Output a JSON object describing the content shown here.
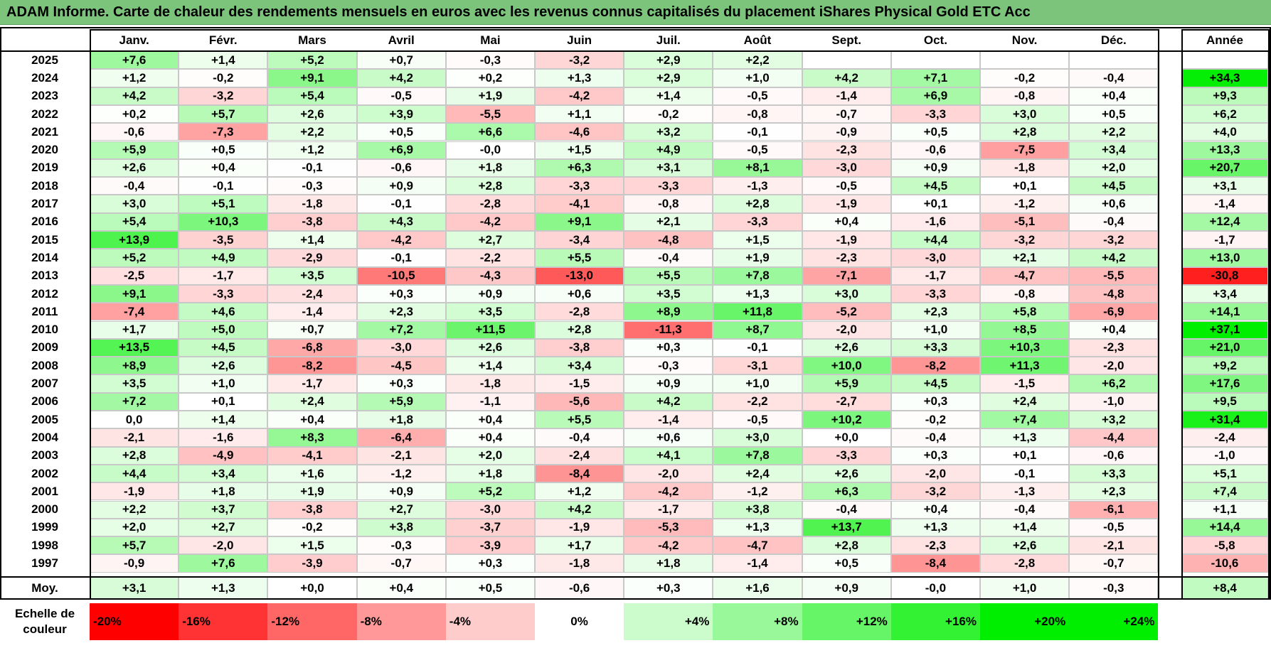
{
  "title": "ADAM Informe. Carte de chaleur des rendements mensuels en euros avec les revenus connus capitalisés du placement iShares Physical Gold ETC Acc",
  "chart_data": {
    "type": "heatmap",
    "months": [
      "Janv.",
      "Févr.",
      "Mars",
      "Avril",
      "Mai",
      "Juin",
      "Juil.",
      "Août",
      "Sept.",
      "Oct.",
      "Nov.",
      "Déc."
    ],
    "year_header": "Année",
    "rows": [
      {
        "year": "2025",
        "m": [
          "+7,6",
          "+1,4",
          "+5,2",
          "+0,7",
          "-0,3",
          "-3,2",
          "+2,9",
          "+2,2",
          "",
          "",
          "",
          ""
        ],
        "y": ""
      },
      {
        "year": "2024",
        "m": [
          "+1,2",
          "-0,2",
          "+9,1",
          "+4,2",
          "+0,2",
          "+1,3",
          "+2,9",
          "+1,0",
          "+4,2",
          "+7,1",
          "-0,2",
          "-0,4"
        ],
        "y": "+34,3"
      },
      {
        "year": "2023",
        "m": [
          "+4,2",
          "-3,2",
          "+5,4",
          "-0,5",
          "+1,9",
          "-4,2",
          "+1,4",
          "-0,5",
          "-1,4",
          "+6,9",
          "-0,8",
          "+0,4"
        ],
        "y": "+9,3"
      },
      {
        "year": "2022",
        "m": [
          "+0,2",
          "+5,7",
          "+2,6",
          "+3,9",
          "-5,5",
          "+1,1",
          "-0,2",
          "-0,8",
          "-0,7",
          "-3,3",
          "+3,0",
          "+0,5"
        ],
        "y": "+6,2"
      },
      {
        "year": "2021",
        "m": [
          "-0,6",
          "-7,3",
          "+2,2",
          "+0,5",
          "+6,6",
          "-4,6",
          "+3,2",
          "-0,1",
          "-0,9",
          "+0,5",
          "+2,8",
          "+2,2"
        ],
        "y": "+4,0"
      },
      {
        "year": "2020",
        "m": [
          "+5,9",
          "+0,5",
          "+1,2",
          "+6,9",
          "-0,0",
          "+1,5",
          "+4,9",
          "-0,5",
          "-2,3",
          "-0,6",
          "-7,5",
          "+3,4"
        ],
        "y": "+13,3"
      },
      {
        "year": "2019",
        "m": [
          "+2,6",
          "+0,4",
          "-0,1",
          "-0,6",
          "+1,8",
          "+6,3",
          "+3,1",
          "+8,1",
          "-3,0",
          "+0,9",
          "-1,8",
          "+2,0"
        ],
        "y": "+20,7"
      },
      {
        "year": "2018",
        "m": [
          "-0,4",
          "-0,1",
          "-0,3",
          "+0,9",
          "+2,8",
          "-3,3",
          "-3,3",
          "-1,3",
          "-0,5",
          "+4,5",
          "+0,1",
          "+4,5"
        ],
        "y": "+3,1"
      },
      {
        "year": "2017",
        "m": [
          "+3,0",
          "+5,1",
          "-1,8",
          "-0,1",
          "-2,8",
          "-4,1",
          "-0,8",
          "+2,8",
          "-1,9",
          "+0,1",
          "-1,2",
          "+0,6"
        ],
        "y": "-1,4"
      },
      {
        "year": "2016",
        "m": [
          "+5,4",
          "+10,3",
          "-3,8",
          "+4,3",
          "-4,2",
          "+9,1",
          "+2,1",
          "-3,3",
          "+0,4",
          "-1,6",
          "-5,1",
          "-0,4"
        ],
        "y": "+12,4"
      },
      {
        "year": "2015",
        "m": [
          "+13,9",
          "-3,5",
          "+1,4",
          "-4,2",
          "+2,7",
          "-3,4",
          "-4,8",
          "+1,5",
          "-1,9",
          "+4,4",
          "-3,2",
          "-3,2"
        ],
        "y": "-1,7"
      },
      {
        "year": "2014",
        "m": [
          "+5,2",
          "+4,9",
          "-2,9",
          "-0,1",
          "-2,2",
          "+5,5",
          "-0,4",
          "+1,9",
          "-2,3",
          "-3,0",
          "+2,1",
          "+4,2"
        ],
        "y": "+13,0"
      },
      {
        "year": "2013",
        "m": [
          "-2,5",
          "-1,7",
          "+3,5",
          "-10,5",
          "-4,3",
          "-13,0",
          "+5,5",
          "+7,8",
          "-7,1",
          "-1,7",
          "-4,7",
          "-5,5"
        ],
        "y": "-30,8"
      },
      {
        "year": "2012",
        "m": [
          "+9,1",
          "-3,3",
          "-2,4",
          "+0,3",
          "+0,9",
          "+0,6",
          "+3,5",
          "+1,3",
          "+3,0",
          "-3,3",
          "-0,8",
          "-4,8"
        ],
        "y": "+3,4"
      },
      {
        "year": "2011",
        "m": [
          "-7,4",
          "+4,6",
          "-1,4",
          "+2,3",
          "+3,5",
          "-2,8",
          "+8,9",
          "+11,8",
          "-5,2",
          "+2,3",
          "+5,8",
          "-6,9"
        ],
        "y": "+14,1"
      },
      {
        "year": "2010",
        "m": [
          "+1,7",
          "+5,0",
          "+0,7",
          "+7,2",
          "+11,5",
          "+2,8",
          "-11,3",
          "+8,7",
          "-2,0",
          "+1,0",
          "+8,5",
          "+0,4"
        ],
        "y": "+37,1"
      },
      {
        "year": "2009",
        "m": [
          "+13,5",
          "+4,5",
          "-6,8",
          "-3,0",
          "+2,6",
          "-3,8",
          "+0,3",
          "-0,1",
          "+2,6",
          "+3,3",
          "+10,3",
          "-2,3"
        ],
        "y": "+21,0"
      },
      {
        "year": "2008",
        "m": [
          "+8,9",
          "+2,6",
          "-8,2",
          "-4,5",
          "+1,4",
          "+3,4",
          "-0,3",
          "-3,1",
          "+10,0",
          "-8,2",
          "+11,3",
          "-2,0"
        ],
        "y": "+9,2"
      },
      {
        "year": "2007",
        "m": [
          "+3,5",
          "+1,0",
          "-1,7",
          "+0,3",
          "-1,8",
          "-1,5",
          "+0,9",
          "+1,0",
          "+5,9",
          "+4,5",
          "-1,5",
          "+6,2"
        ],
        "y": "+17,6"
      },
      {
        "year": "2006",
        "m": [
          "+7,2",
          "+0,1",
          "+2,4",
          "+5,9",
          "-1,1",
          "-5,6",
          "+4,2",
          "-2,2",
          "-2,7",
          "+0,3",
          "+2,4",
          "-1,0"
        ],
        "y": "+9,5"
      },
      {
        "year": "2005",
        "m": [
          "0,0",
          "+1,4",
          "+0,4",
          "+1,8",
          "+0,4",
          "+5,5",
          "-1,4",
          "-0,5",
          "+10,2",
          "-0,2",
          "+7,4",
          "+3,2"
        ],
        "y": "+31,4"
      },
      {
        "year": "2004",
        "m": [
          "-2,1",
          "-1,6",
          "+8,3",
          "-6,4",
          "+0,4",
          "-0,4",
          "+0,6",
          "+3,0",
          "+0,0",
          "-0,4",
          "+1,3",
          "-4,4"
        ],
        "y": "-2,4"
      },
      {
        "year": "2003",
        "m": [
          "+2,8",
          "-4,9",
          "-4,1",
          "-2,1",
          "+2,0",
          "-2,4",
          "+4,1",
          "+7,8",
          "-3,3",
          "+0,3",
          "+0,1",
          "-0,6"
        ],
        "y": "-1,0"
      },
      {
        "year": "2002",
        "m": [
          "+4,4",
          "+3,4",
          "+1,6",
          "-1,2",
          "+1,8",
          "-8,4",
          "-2,0",
          "+2,4",
          "+2,6",
          "-2,0",
          "-0,1",
          "+3,3"
        ],
        "y": "+5,1"
      },
      {
        "year": "2001",
        "m": [
          "-1,9",
          "+1,8",
          "+1,9",
          "+0,9",
          "+5,2",
          "+1,2",
          "-4,2",
          "-1,2",
          "+6,3",
          "-3,2",
          "-1,3",
          "+2,3"
        ],
        "y": "+7,4"
      },
      {
        "year": "2000",
        "m": [
          "+2,2",
          "+3,7",
          "-3,8",
          "+2,7",
          "-3,0",
          "+4,2",
          "-1,7",
          "+3,8",
          "-0,4",
          "+0,4",
          "-0,4",
          "-6,1"
        ],
        "y": "+1,1"
      },
      {
        "year": "1999",
        "m": [
          "+2,0",
          "+2,7",
          "-0,2",
          "+3,8",
          "-3,7",
          "-1,9",
          "-5,3",
          "+1,3",
          "+13,7",
          "+1,3",
          "+1,4",
          "-0,5"
        ],
        "y": "+14,4"
      },
      {
        "year": "1998",
        "m": [
          "+5,7",
          "-2,0",
          "+1,5",
          "-0,3",
          "-3,9",
          "+1,7",
          "-4,2",
          "-4,7",
          "+2,8",
          "-2,3",
          "+2,6",
          "-2,1"
        ],
        "y": "-5,8"
      },
      {
        "year": "1997",
        "m": [
          "-0,9",
          "+7,6",
          "-3,9",
          "-0,7",
          "+0,3",
          "-1,8",
          "+1,8",
          "-1,4",
          "+0,5",
          "-8,4",
          "-2,8",
          "-0,7"
        ],
        "y": "-10,6"
      }
    ],
    "average": {
      "label": "Moy.",
      "m": [
        "+3,1",
        "+1,3",
        "+0,0",
        "+0,4",
        "+0,5",
        "-0,6",
        "+0,3",
        "+1,6",
        "+0,9",
        "-0,0",
        "+1,0",
        "-0,3"
      ],
      "y": "+8,4"
    },
    "legend": {
      "label_line1": "Echelle de",
      "label_line2": "couleur",
      "ticks": [
        "-20%",
        "-16%",
        "-12%",
        "-8%",
        "-4%",
        "0%",
        "+4%",
        "+8%",
        "+12%",
        "+16%",
        "+20%",
        "+24%"
      ],
      "values": [
        -20,
        -16,
        -12,
        -8,
        -4,
        0,
        4,
        8,
        12,
        16,
        20,
        24
      ]
    },
    "colors": {
      "negative_max": "#ff0000",
      "positive_max": "#00ee00",
      "neutral": "#ffffff"
    }
  }
}
